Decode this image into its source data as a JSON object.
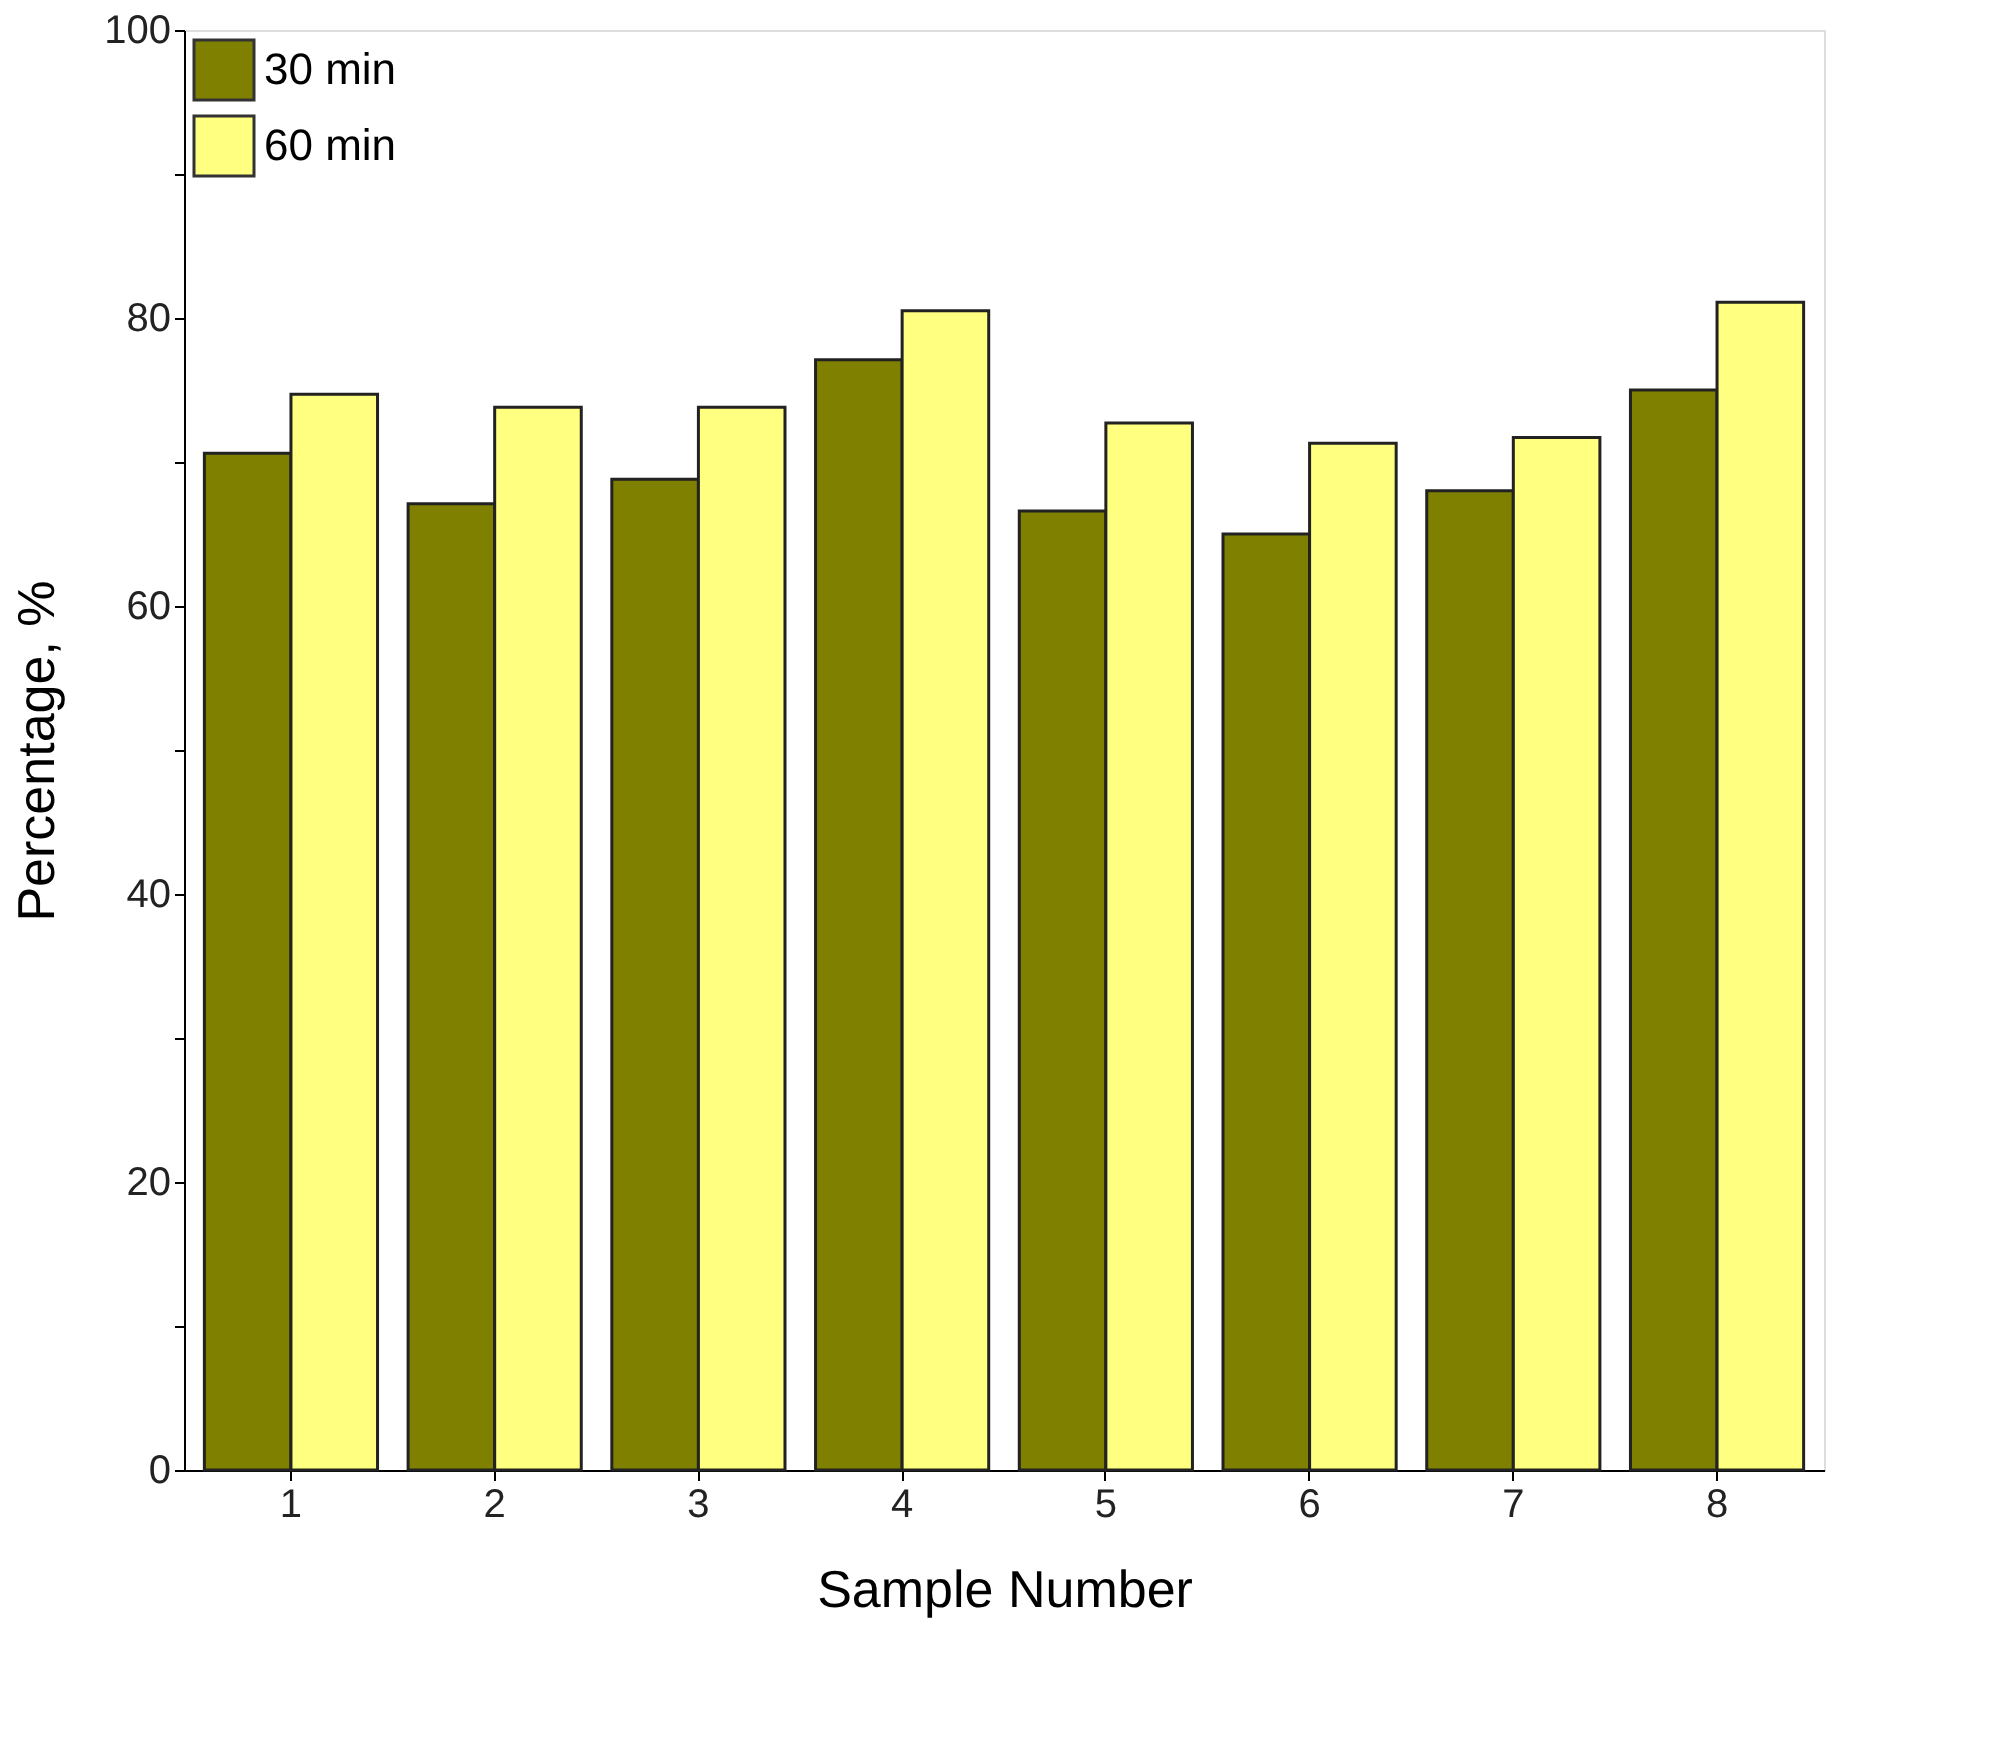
{
  "chart_data": {
    "type": "bar",
    "xlabel": "Sample Number",
    "ylabel": "Percentage, %",
    "categories": [
      "1",
      "2",
      "3",
      "4",
      "5",
      "6",
      "7",
      "8"
    ],
    "series": [
      {
        "name": "30 min",
        "color": "#808000",
        "values": [
          70.6,
          67.1,
          68.8,
          77.1,
          66.6,
          65.0,
          68.0,
          75.0
        ]
      },
      {
        "name": "60 min",
        "color": "#ffff80",
        "values": [
          74.7,
          73.8,
          73.8,
          80.5,
          72.7,
          71.3,
          71.7,
          81.1
        ]
      }
    ],
    "ylim": [
      0,
      100
    ],
    "yticks": [
      0,
      {
        "value": 10,
        "label": null
      },
      20,
      {
        "value": 30,
        "label": null
      },
      40,
      {
        "value": 50,
        "label": null
      },
      60,
      {
        "value": 70,
        "label": null
      },
      80,
      {
        "value": 90,
        "label": null
      },
      100
    ],
    "grid": false,
    "legend": "top left"
  }
}
